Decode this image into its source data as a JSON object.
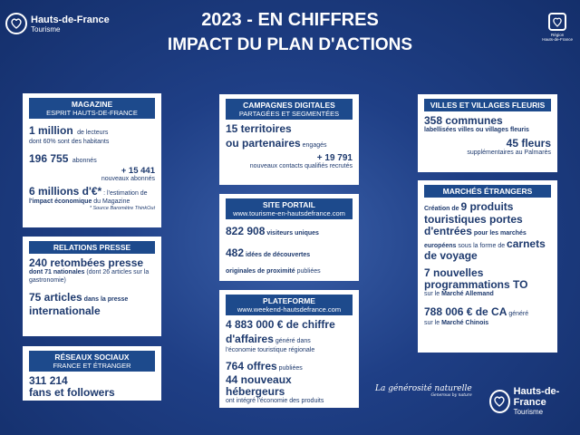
{
  "header": {
    "brand_name": "Hauts-de-France",
    "brand_sub": "Tourisme",
    "title_line1": "2023 - EN CHIFFRES",
    "title_line2": "IMPACT DU PLAN D'ACTIONS",
    "region_line1": "Région",
    "region_line2": "Hauts-de-France"
  },
  "magazine": {
    "h1": "MAGAZINE",
    "h2": "ESPRIT HAUTS-DE-FRANCE",
    "readers_big": "1 million",
    "readers_small": "de lecteurs",
    "readers_line2": "dont 60% sont des habitants",
    "subs_big": "196 755",
    "subs_small": "abonnés",
    "new_big": "+ 15 441",
    "new_small": "nouveaux abonnés",
    "estimate_big": "6 millions d'€*",
    "estimate_rest": " : l'estimation de ",
    "estimate_bold": "l'impact économique",
    "estimate_end": " du Magazine",
    "source": "* Source Baromètre ThinkOut"
  },
  "press": {
    "h": "RELATIONS PRESSE",
    "fallouts_big": "240 retombées presse",
    "fallouts_line": "dont 71 nationales",
    "fallouts_rest": " (dont 26 articles sur la gastronomie)",
    "articles_big": "75 articles",
    "articles_small": " dans la presse",
    "articles_line": "internationale"
  },
  "social": {
    "h1": "RÉSEAUX SOCIAUX",
    "h2": "FRANCE ET ÉTRANGER",
    "value": "311 214",
    "label": "fans et followers"
  },
  "digital": {
    "h1": "CAMPAGNES DIGITALES",
    "h2": "PARTAGÉES ET SEGMENTÉES",
    "terr_big": "15 territoires",
    "terr_line": "ou partenaires",
    "terr_small": " engagés",
    "contacts_big": "+ 19 791",
    "contacts_small": "nouveaux contacts qualifiés recrutés"
  },
  "portal": {
    "h1": "SITE PORTAIL",
    "h2": "www.tourisme-en-hautsdefrance.com",
    "visitors_big": "822 908",
    "visitors_small": " visiteurs uniques",
    "ideas_big": "482",
    "ideas_small": " idées de découvertes",
    "ideas_line": "originales de proximité",
    "ideas_end": " publiées"
  },
  "platform": {
    "h1": "PLATEFORME",
    "h2": "www.weekend-hautsdefrance.com",
    "ca_big": "4 883 000 € de chiffre",
    "ca_line": "d'affaires",
    "ca_small": " généré dans",
    "ca_end": "l'économie touristique régionale",
    "offers_big": "764 offres",
    "offers_small": " publiées",
    "hosts_big": "44 nouveaux hébergeurs",
    "hosts_small": "ont intégré l'économie des produits"
  },
  "villages": {
    "h": "VILLES ET VILLAGES FLEURIS",
    "communes_big": "358 communes",
    "communes_small": "labellisées villes ou villages fleuris",
    "flowers_big": "45 fleurs",
    "flowers_small": "supplémentaires au Palmarès"
  },
  "markets": {
    "h": "MARCHÉS ÉTRANGERS",
    "creation_pre": "Création de ",
    "creation_big": "9 produits touristiques portes d'entrées",
    "creation_mid": " pour les marchés européens",
    "creation_mid2": " sous la forme de ",
    "creation_end": "carnets de voyage",
    "prog_big": "7 nouvelles programmations TO",
    "prog_small": "sur le ",
    "prog_market": "Marché Allemand",
    "ca_big": "788 006 € de CA",
    "ca_small": " généré",
    "ca_line": "sur le ",
    "ca_market": "Marché Chinois"
  },
  "footer": {
    "slogan": "La générosité naturelle",
    "sub": "Generous by nature",
    "brand_name": "Hauts-de-France",
    "brand_sub": "Tourisme"
  }
}
